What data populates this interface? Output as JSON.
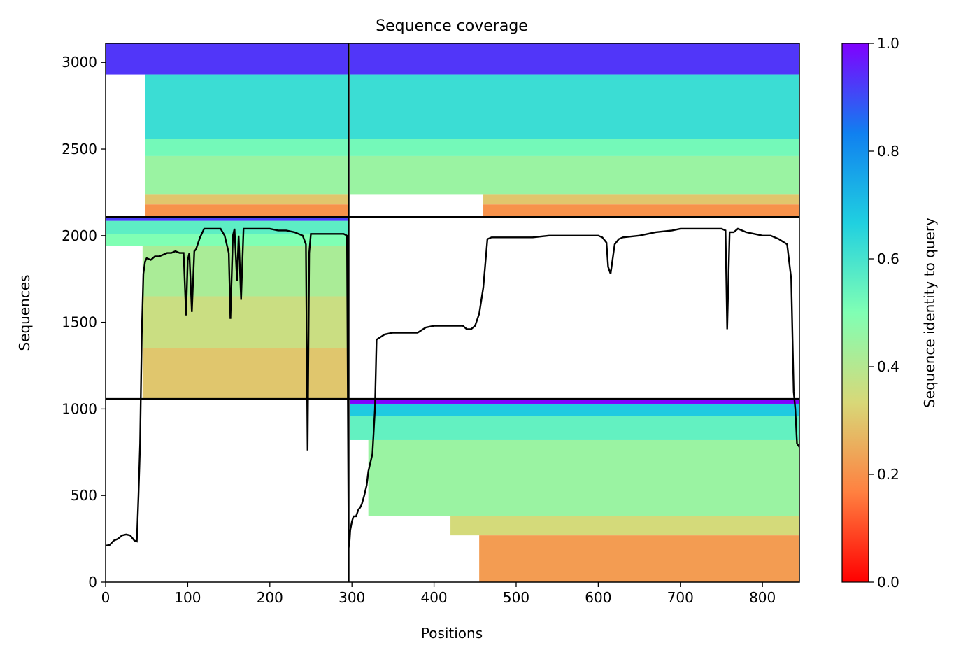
{
  "chart_data": {
    "type": "heatmap",
    "title": "Sequence coverage",
    "xlabel": "Positions",
    "ylabel": "Sequences",
    "xlim": [
      0,
      845
    ],
    "ylim": [
      0,
      3110
    ],
    "xticks": [
      0,
      100,
      200,
      300,
      400,
      500,
      600,
      700,
      800
    ],
    "yticks": [
      0,
      500,
      1000,
      1500,
      2000,
      2500,
      3000
    ],
    "grid": false,
    "colormap": "rainbow",
    "colormap_stops": [
      "#ff0000",
      "#ff8040",
      "#d8d878",
      "#80ffb4",
      "#20d0e0",
      "#1080f0",
      "#8000ff"
    ],
    "colorbar": {
      "label": "Sequence identity to query",
      "range": [
        0,
        1
      ],
      "ticks": [
        0.0,
        0.2,
        0.4,
        0.6,
        0.8,
        1.0
      ],
      "tick_labels": [
        "0.0",
        "0.2",
        "0.4",
        "0.6",
        "0.8",
        "1.0"
      ]
    },
    "block_boundaries": {
      "positions": [
        296
      ],
      "sequences": [
        1058,
        2109
      ]
    },
    "coverage_blocks": [
      {
        "x_start": 298,
        "x_end": 845,
        "seq_start": 1030,
        "seq_end": 1058,
        "identity": 1.0
      },
      {
        "x_start": 298,
        "x_end": 845,
        "seq_start": 960,
        "seq_end": 1030,
        "identity": 0.68
      },
      {
        "x_start": 298,
        "x_end": 845,
        "seq_start": 820,
        "seq_end": 960,
        "identity": 0.55
      },
      {
        "x_start": 320,
        "x_end": 845,
        "seq_start": 380,
        "seq_end": 820,
        "identity": 0.45
      },
      {
        "x_start": 420,
        "x_end": 845,
        "seq_start": 270,
        "seq_end": 380,
        "identity": 0.34
      },
      {
        "x_start": 455,
        "x_end": 845,
        "seq_start": 0,
        "seq_end": 270,
        "identity": 0.22
      },
      {
        "x_start": 0,
        "x_end": 296,
        "seq_start": 2085,
        "seq_end": 2109,
        "identity": 0.92
      },
      {
        "x_start": 0,
        "x_end": 296,
        "seq_start": 2010,
        "seq_end": 2085,
        "identity": 0.56
      },
      {
        "x_start": 0,
        "x_end": 296,
        "seq_start": 1940,
        "seq_end": 2010,
        "identity": 0.5
      },
      {
        "x_start": 45,
        "x_end": 296,
        "seq_start": 1650,
        "seq_end": 1940,
        "identity": 0.42
      },
      {
        "x_start": 45,
        "x_end": 296,
        "seq_start": 1350,
        "seq_end": 1650,
        "identity": 0.36
      },
      {
        "x_start": 45,
        "x_end": 296,
        "seq_start": 1058,
        "seq_end": 1350,
        "identity": 0.3
      },
      {
        "x_start": 0,
        "x_end": 296,
        "seq_start": 2930,
        "seq_end": 3110,
        "identity": 0.93
      },
      {
        "x_start": 48,
        "x_end": 296,
        "seq_start": 2560,
        "seq_end": 2930,
        "identity": 0.62
      },
      {
        "x_start": 48,
        "x_end": 296,
        "seq_start": 2460,
        "seq_end": 2560,
        "identity": 0.52
      },
      {
        "x_start": 48,
        "x_end": 296,
        "seq_start": 2240,
        "seq_end": 2460,
        "identity": 0.45
      },
      {
        "x_start": 48,
        "x_end": 296,
        "seq_start": 2180,
        "seq_end": 2240,
        "identity": 0.3
      },
      {
        "x_start": 48,
        "x_end": 296,
        "seq_start": 2109,
        "seq_end": 2180,
        "identity": 0.2
      },
      {
        "x_start": 298,
        "x_end": 845,
        "seq_start": 2930,
        "seq_end": 3110,
        "identity": 0.93
      },
      {
        "x_start": 298,
        "x_end": 845,
        "seq_start": 2560,
        "seq_end": 2930,
        "identity": 0.62
      },
      {
        "x_start": 298,
        "x_end": 845,
        "seq_start": 2460,
        "seq_end": 2560,
        "identity": 0.52
      },
      {
        "x_start": 298,
        "x_end": 845,
        "seq_start": 2240,
        "seq_end": 2460,
        "identity": 0.45
      },
      {
        "x_start": 460,
        "x_end": 845,
        "seq_start": 2180,
        "seq_end": 2240,
        "identity": 0.3
      },
      {
        "x_start": 460,
        "x_end": 845,
        "seq_start": 2109,
        "seq_end": 2180,
        "identity": 0.2
      }
    ],
    "coverage_line": {
      "x": [
        0,
        5,
        10,
        15,
        20,
        25,
        30,
        35,
        38,
        40,
        42,
        44,
        46,
        48,
        50,
        55,
        60,
        65,
        70,
        75,
        80,
        85,
        90,
        95,
        98,
        100,
        102,
        105,
        108,
        110,
        115,
        120,
        125,
        130,
        135,
        140,
        145,
        150,
        152,
        155,
        157,
        160,
        162,
        165,
        168,
        170,
        180,
        190,
        200,
        210,
        220,
        230,
        240,
        244,
        246,
        248,
        250,
        260,
        270,
        280,
        290,
        294,
        296,
        297,
        298,
        300,
        302,
        305,
        308,
        310,
        312,
        315,
        318,
        320,
        322,
        325,
        328,
        330,
        340,
        350,
        360,
        370,
        380,
        390,
        400,
        410,
        420,
        430,
        435,
        440,
        445,
        450,
        455,
        460,
        465,
        470,
        480,
        500,
        520,
        540,
        560,
        580,
        600,
        605,
        610,
        612,
        615,
        620,
        625,
        630,
        650,
        670,
        690,
        700,
        720,
        740,
        750,
        755,
        757,
        760,
        765,
        770,
        780,
        790,
        800,
        810,
        820,
        830,
        835,
        838,
        840,
        842,
        845
      ],
      "y": [
        210,
        215,
        240,
        250,
        270,
        275,
        270,
        240,
        235,
        500,
        800,
        1430,
        1780,
        1850,
        1870,
        1860,
        1880,
        1880,
        1890,
        1900,
        1900,
        1910,
        1900,
        1900,
        1540,
        1860,
        1900,
        1560,
        1910,
        1920,
        1990,
        2040,
        2040,
        2040,
        2040,
        2040,
        2000,
        1900,
        1520,
        2000,
        2040,
        1740,
        2000,
        1630,
        2040,
        2040,
        2040,
        2040,
        2040,
        2030,
        2030,
        2020,
        2000,
        1950,
        760,
        1900,
        2010,
        2010,
        2010,
        2010,
        2010,
        2000,
        200,
        230,
        300,
        350,
        380,
        380,
        420,
        430,
        450,
        500,
        560,
        640,
        680,
        740,
        1000,
        1400,
        1430,
        1440,
        1440,
        1440,
        1440,
        1470,
        1480,
        1480,
        1480,
        1480,
        1480,
        1460,
        1460,
        1480,
        1550,
        1700,
        1980,
        1990,
        1990,
        1990,
        1990,
        2000,
        2000,
        2000,
        2000,
        1990,
        1960,
        1820,
        1780,
        1950,
        1980,
        1990,
        2000,
        2020,
        2030,
        2040,
        2040,
        2040,
        2040,
        2030,
        1460,
        2020,
        2020,
        2040,
        2020,
        2010,
        2000,
        2000,
        1980,
        1950,
        1750,
        1100,
        1000,
        800,
        780
      ]
    }
  }
}
